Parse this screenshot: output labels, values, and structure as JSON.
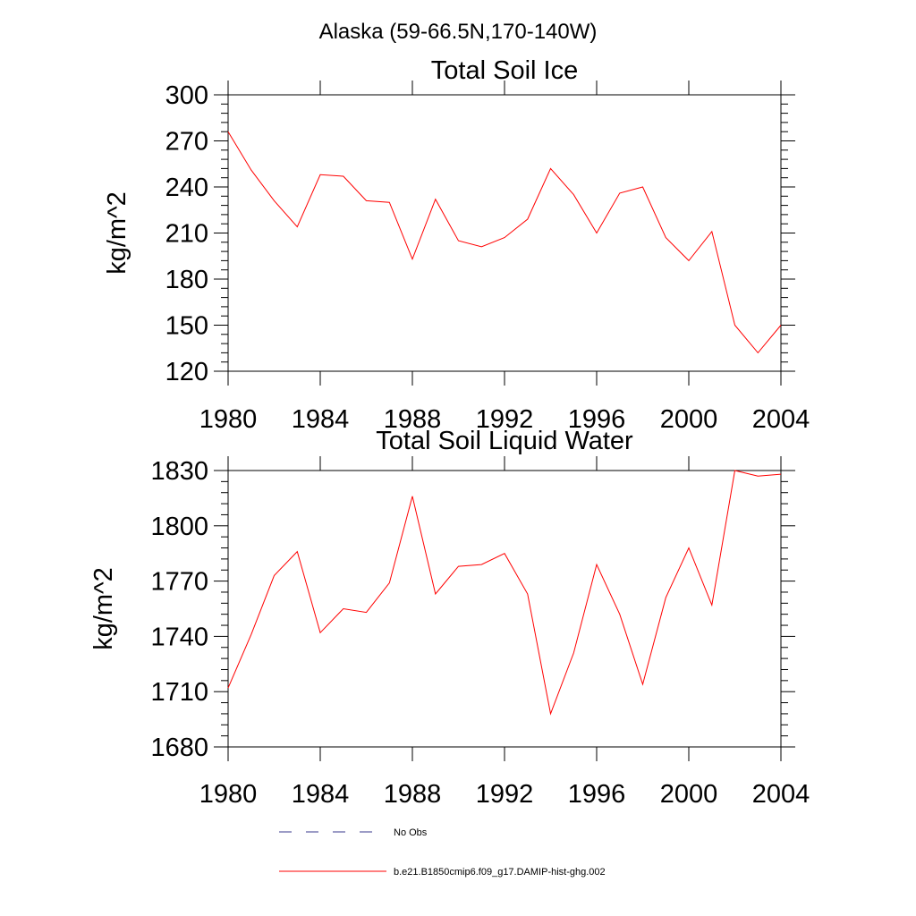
{
  "figure": {
    "title": "Alaska (59-66.5N,170-140W)"
  },
  "chart_data": [
    {
      "type": "line",
      "title": "Total Soil Ice",
      "ylabel": "kg/m^2",
      "xlabel": "",
      "xlim": [
        1980,
        2004
      ],
      "ylim": [
        120,
        300
      ],
      "xticks": [
        1980,
        1984,
        1988,
        1992,
        1996,
        2000,
        2004
      ],
      "yticks": [
        120,
        150,
        180,
        210,
        240,
        270,
        300
      ],
      "x": [
        1980,
        1981,
        1982,
        1983,
        1984,
        1985,
        1986,
        1987,
        1988,
        1989,
        1990,
        1991,
        1992,
        1993,
        1994,
        1995,
        1996,
        1997,
        1998,
        1999,
        2000,
        2001,
        2002,
        2003,
        2004
      ],
      "series": [
        {
          "name": "b.e21.B1850cmip6.f09_g17.DAMIP-hist-ghg.002",
          "color": "#ff0000",
          "values": [
            276,
            251,
            231,
            214,
            248,
            247,
            231,
            230,
            193,
            232,
            205,
            201,
            207,
            219,
            252,
            235,
            210,
            236,
            240,
            207,
            192,
            211,
            150,
            132,
            150
          ]
        }
      ]
    },
    {
      "type": "line",
      "title": "Total Soil Liquid Water",
      "ylabel": "kg/m^2",
      "xlabel": "",
      "xlim": [
        1980,
        2004
      ],
      "ylim": [
        1680,
        1830
      ],
      "xticks": [
        1980,
        1984,
        1988,
        1992,
        1996,
        2000,
        2004
      ],
      "yticks": [
        1680,
        1710,
        1740,
        1770,
        1800,
        1830
      ],
      "x": [
        1980,
        1981,
        1982,
        1983,
        1984,
        1985,
        1986,
        1987,
        1988,
        1989,
        1990,
        1991,
        1992,
        1993,
        1994,
        1995,
        1996,
        1997,
        1998,
        1999,
        2000,
        2001,
        2002,
        2003,
        2004
      ],
      "series": [
        {
          "name": "b.e21.B1850cmip6.f09_g17.DAMIP-hist-ghg.002",
          "color": "#ff0000",
          "values": [
            1712,
            1741,
            1773,
            1786,
            1742,
            1755,
            1753,
            1769,
            1816,
            1763,
            1778,
            1779,
            1785,
            1763,
            1698,
            1731,
            1779,
            1752,
            1714,
            1761,
            1788,
            1757,
            1830,
            1827,
            1828
          ]
        }
      ]
    }
  ],
  "legend": [
    {
      "label": "No Obs",
      "color": "#3a3a8c",
      "style": "dashed"
    },
    {
      "label": "b.e21.B1850cmip6.f09_g17.DAMIP-hist-ghg.002",
      "color": "#ff0000",
      "style": "solid"
    }
  ]
}
